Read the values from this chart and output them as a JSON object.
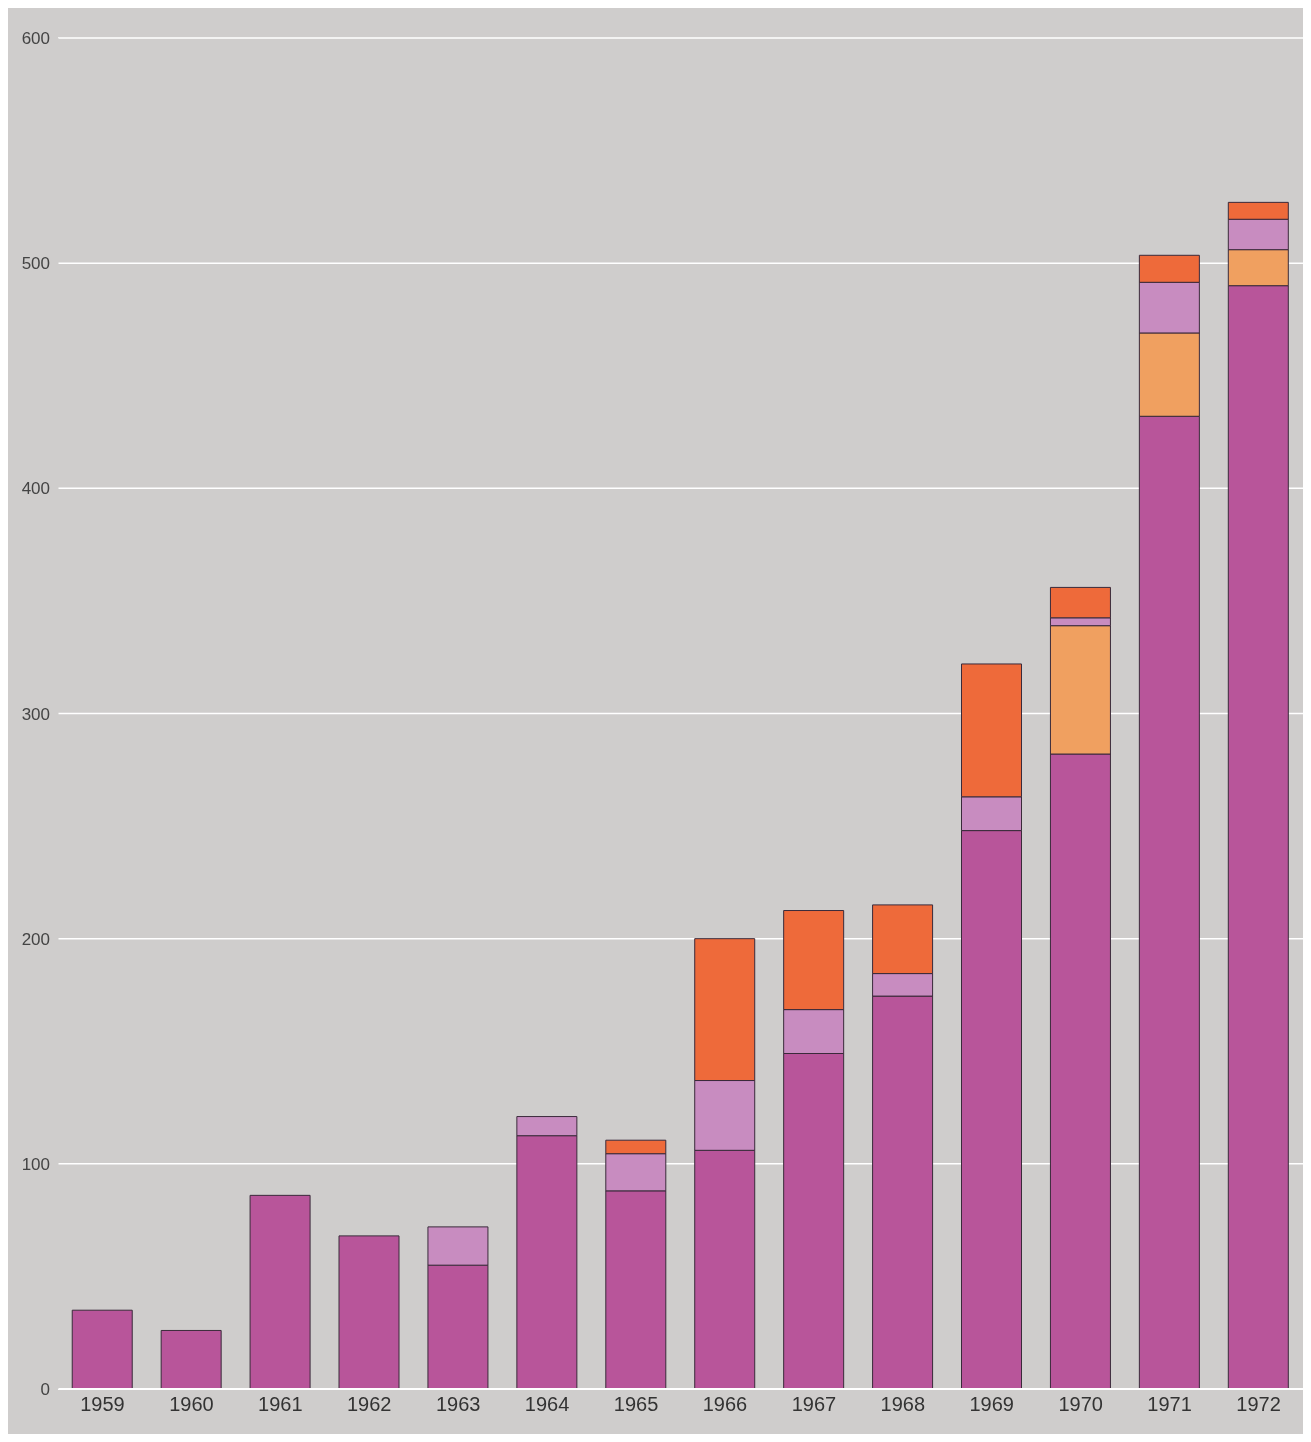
{
  "chart_data": {
    "type": "bar",
    "stacked": true,
    "categories": [
      "1959",
      "1960",
      "1961",
      "1962",
      "1963",
      "1964",
      "1965",
      "1966",
      "1967",
      "1968",
      "1969",
      "1970",
      "1971",
      "1972"
    ],
    "series": [
      {
        "color": "#b8559a",
        "values": [
          35,
          26,
          86,
          68,
          55,
          112.5,
          88,
          106,
          149,
          174.5,
          248,
          282,
          432,
          490
        ]
      },
      {
        "color": "#f0a060",
        "values": [
          null,
          null,
          null,
          null,
          null,
          null,
          null,
          null,
          null,
          null,
          null,
          57,
          37,
          16
        ]
      },
      {
        "color": "#c88cc0",
        "values": [
          null,
          null,
          null,
          null,
          17,
          8.5,
          16.5,
          31,
          19.5,
          10,
          15,
          3.5,
          22.5,
          13.5
        ]
      },
      {
        "color": "#ee6a3a",
        "values": [
          null,
          null,
          null,
          null,
          null,
          null,
          6,
          63,
          44,
          30.5,
          59,
          13.5,
          12,
          7.5
        ]
      }
    ],
    "ylim": [
      0,
      600
    ],
    "yticks": [
      0,
      100,
      200,
      300,
      400,
      500,
      600
    ],
    "grid": "y",
    "legend": false
  }
}
